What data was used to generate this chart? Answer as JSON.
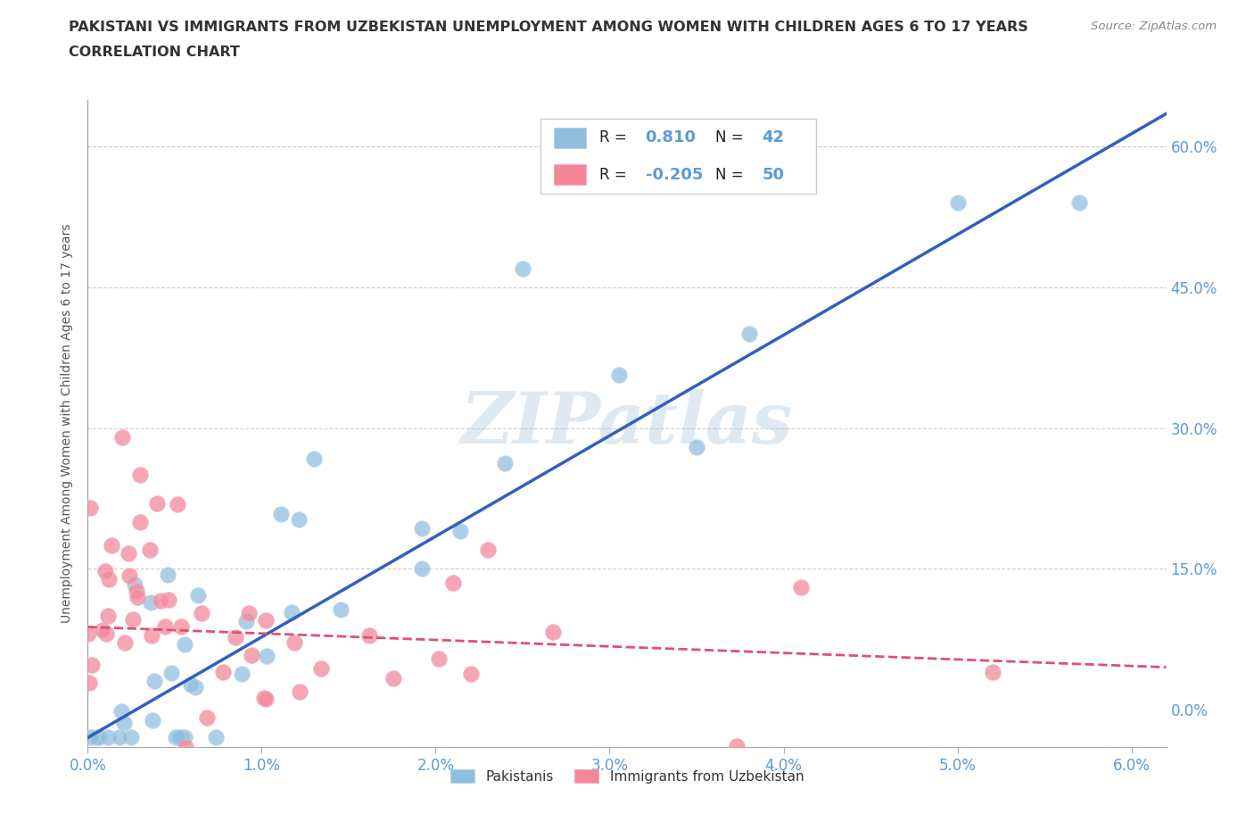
{
  "title_line1": "PAKISTANI VS IMMIGRANTS FROM UZBEKISTAN UNEMPLOYMENT AMONG WOMEN WITH CHILDREN AGES 6 TO 17 YEARS",
  "title_line2": "CORRELATION CHART",
  "source": "Source: ZipAtlas.com",
  "xlim": [
    0.0,
    0.062
  ],
  "ylim": [
    -0.04,
    0.65
  ],
  "watermark": "ZIPatlas",
  "title_color": "#333333",
  "axis_tick_color": "#5b9bd5",
  "grid_color": "#cccccc",
  "scatter_blue": "#90bede",
  "scatter_pink": "#f4879a",
  "line_blue": "#3060c0",
  "line_pink": "#e05070",
  "blue_R": "0.810",
  "blue_N": "42",
  "pink_R": "-0.205",
  "pink_N": "50",
  "legend_label_blue": "Pakistanis",
  "legend_label_pink": "Immigrants from Uzbekistan",
  "ylabel": "Unemployment Among Women with Children Ages 6 to 17 years",
  "xtick_vals": [
    0.0,
    0.01,
    0.02,
    0.03,
    0.04,
    0.05,
    0.06
  ],
  "xtick_labels": [
    "0.0%",
    "1.0%",
    "2.0%",
    "3.0%",
    "4.0%",
    "5.0%",
    "6.0%"
  ],
  "ytick_vals": [
    0.0,
    0.15,
    0.3,
    0.45,
    0.6
  ],
  "ytick_labels": [
    "0.0%",
    "15.0%",
    "30.0%",
    "45.0%",
    "60.0%"
  ],
  "blue_line_x0": 0.0,
  "blue_line_y0": -0.03,
  "blue_line_x1": 0.062,
  "blue_line_y1": 0.635,
  "pink_line_x0": 0.0,
  "pink_line_y0": 0.088,
  "pink_line_x1": 0.062,
  "pink_line_y1": 0.045
}
